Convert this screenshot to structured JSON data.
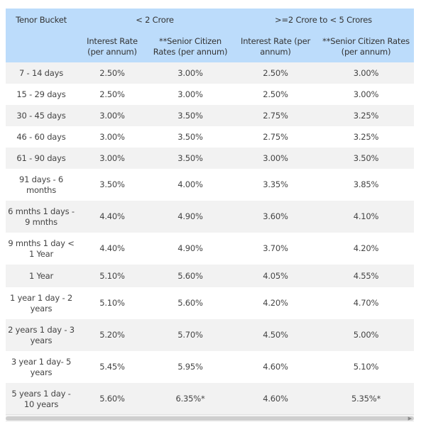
{
  "table": {
    "header": {
      "tenor": "Tenor Bucket",
      "group1": "< 2 Crore",
      "group2": ">=2 Crore to < 5 Crores",
      "sub": {
        "g1_rate": "Interest Rate (per annum)",
        "g1_senior": "**Senior Citizen Rates (per annum)",
        "g2_rate": "Interest Rate (per annum)",
        "g2_senior": "**Senior Citizen Rates (per annum)"
      }
    },
    "rows": [
      {
        "tenor": "7 - 14 days",
        "r1": "2.50%",
        "s1": "3.00%",
        "r2": "2.50%",
        "s2": "3.00%"
      },
      {
        "tenor": "15 - 29 days",
        "r1": "2.50%",
        "s1": "3.00%",
        "r2": "2.50%",
        "s2": "3.00%"
      },
      {
        "tenor": "30 - 45 days",
        "r1": "3.00%",
        "s1": "3.50%",
        "r2": "2.75%",
        "s2": "3.25%"
      },
      {
        "tenor": "46 - 60 days",
        "r1": "3.00%",
        "s1": "3.50%",
        "r2": "2.75%",
        "s2": "3.25%"
      },
      {
        "tenor": "61 - 90 days",
        "r1": "3.00%",
        "s1": "3.50%",
        "r2": "3.00%",
        "s2": "3.50%"
      },
      {
        "tenor": "91 days - 6 months",
        "r1": "3.50%",
        "s1": "4.00%",
        "r2": "3.35%",
        "s2": "3.85%"
      },
      {
        "tenor": "6 mnths 1 days - 9 mnths",
        "r1": "4.40%",
        "s1": "4.90%",
        "r2": "3.60%",
        "s2": "4.10%"
      },
      {
        "tenor": "9 mnths 1 day < 1 Year",
        "r1": "4.40%",
        "s1": "4.90%",
        "r2": "3.70%",
        "s2": "4.20%"
      },
      {
        "tenor": "1 Year",
        "r1": "5.10%",
        "s1": "5.60%",
        "r2": "4.05%",
        "s2": "4.55%"
      },
      {
        "tenor": "1 year 1 day - 2 years",
        "r1": "5.10%",
        "s1": "5.60%",
        "r2": "4.20%",
        "s2": "4.70%"
      },
      {
        "tenor": "2 years 1 day - 3 years",
        "r1": "5.20%",
        "s1": "5.70%",
        "r2": "4.50%",
        "s2": "5.00%"
      },
      {
        "tenor": "3 year 1 day- 5 years",
        "r1": "5.45%",
        "s1": "5.95%",
        "r2": "4.60%",
        "s2": "5.10%"
      },
      {
        "tenor": "5 years 1 day - 10 years",
        "r1": "5.60%",
        "s1": "6.35%*",
        "r2": "4.60%",
        "s2": "5.35%*"
      }
    ]
  },
  "scrollbar": {
    "left_arrow": "◀",
    "right_arrow": "▶"
  },
  "colors": {
    "header_bg": "#bcdcfb",
    "stripe_bg": "#f2f2f2"
  }
}
